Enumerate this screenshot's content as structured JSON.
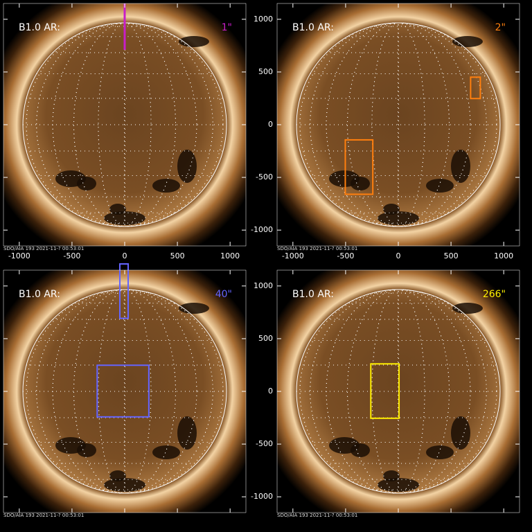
{
  "axes": {
    "xlim": [
      -1150,
      1150
    ],
    "ylim": [
      -1150,
      1150
    ],
    "xticks": [
      -1000,
      -500,
      0,
      500,
      1000
    ],
    "yticks": [
      -1000,
      -500,
      0,
      500,
      1000
    ]
  },
  "panels": [
    {
      "label": "B1.0 AR:",
      "scale_label": "1\"",
      "footer": "SDO/AIA 193  2021-11-? 00:53:01",
      "color": "#c81ec8",
      "lines": [
        {
          "x": 0,
          "y": [
            710,
            1150
          ]
        }
      ],
      "boxes": []
    },
    {
      "label": "B1.0 AR:",
      "scale_label": "2\"",
      "footer": "SDO/AIA 193  2021-11-? 00:53:01",
      "color": "#ff7f0e",
      "lines": [],
      "boxes": [
        {
          "x": [
            686,
            778
          ],
          "y": [
            248,
            451
          ]
        },
        {
          "x": [
            -503,
            -242
          ],
          "y": [
            -660,
            -144
          ]
        }
      ]
    },
    {
      "label": "B1.0 AR:",
      "scale_label": "40\"",
      "footer": "SDO/AIA 193  2021-11-? 00:53:01",
      "color": "#6464ff",
      "lines": [],
      "boxes": [
        {
          "x": [
            -46,
            33
          ],
          "y": [
            693,
            1209
          ]
        },
        {
          "x": [
            -261,
            229
          ],
          "y": [
            -242,
            248
          ]
        }
      ]
    },
    {
      "label": "B1.0 AR:",
      "scale_label": "266\"",
      "footer": "SDO/AIA 193  2021-11-? 00:53:01",
      "color": "#ffee00",
      "lines": [],
      "boxes": [
        {
          "x": [
            -261,
            7
          ],
          "y": [
            -255,
            261
          ]
        }
      ]
    }
  ]
}
